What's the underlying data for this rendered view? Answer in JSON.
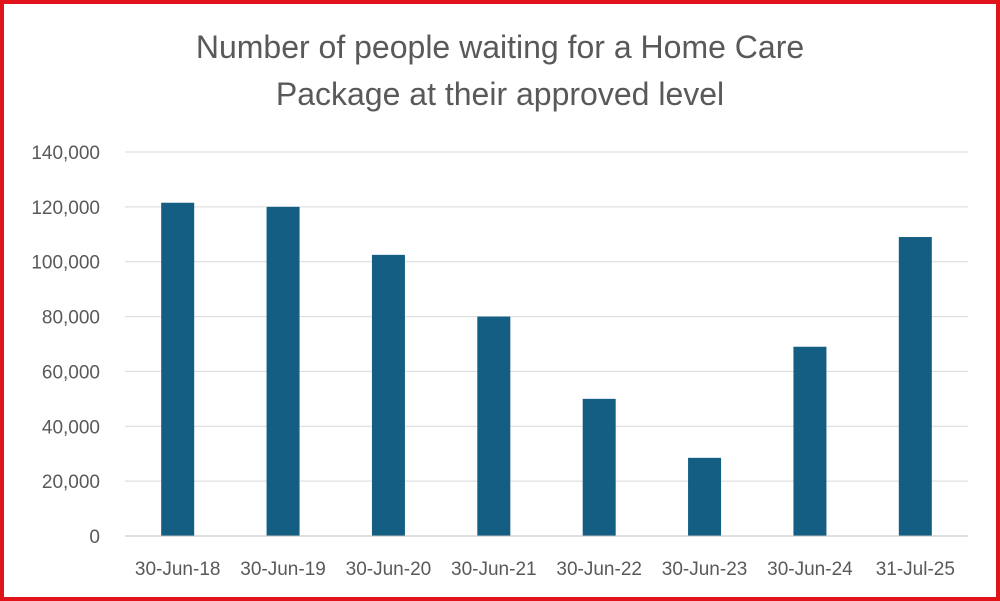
{
  "chart_data": {
    "type": "bar",
    "title_lines": [
      "Number of people waiting for a Home Care",
      "Package at their approved level"
    ],
    "title": "Number of people waiting for a Home Care Package at their approved level",
    "xlabel": "",
    "ylabel": "",
    "categories": [
      "30-Jun-18",
      "30-Jun-19",
      "30-Jun-20",
      "30-Jun-21",
      "30-Jun-22",
      "30-Jun-23",
      "30-Jun-24",
      "31-Jul-25"
    ],
    "values": [
      121500,
      120000,
      102500,
      80000,
      50000,
      28500,
      69000,
      109000
    ],
    "ylim": [
      0,
      140000
    ],
    "yticks": [
      0,
      20000,
      40000,
      60000,
      80000,
      100000,
      120000,
      140000
    ],
    "ytick_labels": [
      "0",
      "20,000",
      "40,000",
      "60,000",
      "80,000",
      "100,000",
      "120,000",
      "140,000"
    ],
    "grid": true,
    "legend": "none",
    "colors": {
      "bar": "#135e82",
      "grid": "#d9d9d9",
      "axis": "#bfbfbf",
      "text": "#595959",
      "border": "#e0131a"
    }
  }
}
